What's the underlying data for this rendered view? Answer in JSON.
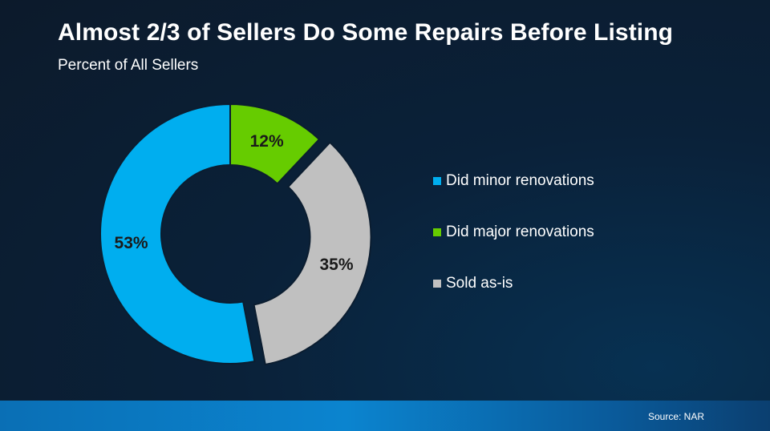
{
  "title": "Almost 2/3 of Sellers Do Some Repairs Before Listing",
  "subtitle": "Percent of All Sellers",
  "source": "Source: NAR",
  "chart_data": {
    "type": "pie",
    "title": "Almost 2/3 of Sellers Do Some Repairs Before Listing",
    "subtitle": "Percent of All Sellers",
    "categories": [
      "Did minor renovations",
      "Did major renovations",
      "Sold as-is"
    ],
    "values": [
      53,
      12,
      35
    ],
    "labels": [
      "53%",
      "12%",
      "35%"
    ],
    "colors": [
      "#00aeef",
      "#66cc00",
      "#c0c0c0"
    ],
    "exploded": [
      false,
      false,
      true
    ],
    "donut": true,
    "legend_position": "right"
  }
}
